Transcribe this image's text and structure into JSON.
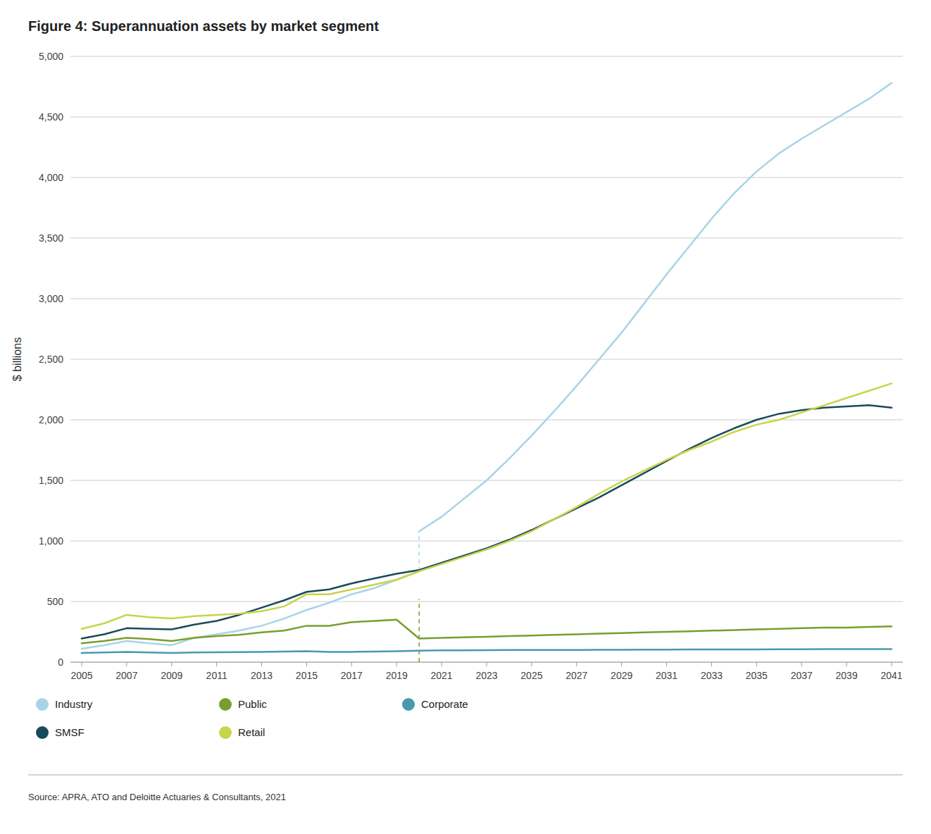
{
  "chart_data": {
    "type": "line",
    "title": "Figure 4: Superannuation assets by market segment",
    "y_label": "$ billions",
    "source": "Source: APRA, ATO and Deloitte Actuaries & Consultants, 2021",
    "xlim": [
      2004.5,
      2041.5
    ],
    "xticks": [
      2005,
      2007,
      2009,
      2011,
      2013,
      2015,
      2017,
      2019,
      2021,
      2023,
      2025,
      2027,
      2029,
      2031,
      2033,
      2035,
      2037,
      2039,
      2041
    ],
    "ylim": [
      0,
      5000
    ],
    "yticks": [
      0,
      500,
      {
        "value": 1000,
        "label": "1,000"
      },
      {
        "value": 1500,
        "label": "1,500"
      },
      {
        "value": 2000,
        "label": "2,000"
      },
      {
        "value": 2500,
        "label": "2,500"
      },
      {
        "value": 3000,
        "label": "3,000"
      },
      {
        "value": 3500,
        "label": "3,500"
      },
      {
        "value": 4000,
        "label": "4,000"
      },
      {
        "value": 4500,
        "label": "4,500"
      },
      {
        "value": 5000,
        "label": "5,000"
      }
    ],
    "grid": "y",
    "legend": "bottom",
    "legend_order": [
      0,
      3,
      4,
      1,
      2
    ],
    "series": [
      {
        "name": "Industry",
        "color": "#a8d4e6",
        "segments": [
          {
            "x": [
              2005,
              2006,
              2007,
              2008,
              2009,
              2010,
              2011,
              2012,
              2013,
              2014,
              2015,
              2016,
              2017,
              2018,
              2019,
              2020
            ],
            "values": [
              110,
              140,
              175,
              155,
              140,
              200,
              230,
              260,
              300,
              360,
              430,
              490,
              560,
              610,
              680,
              750
            ]
          },
          {
            "x": [
              2020,
              2021,
              2022,
              2023,
              2024,
              2025,
              2026,
              2027,
              2028,
              2029,
              2030,
              2031,
              2032,
              2033,
              2034,
              2035,
              2036,
              2037,
              2038,
              2039,
              2040,
              2041
            ],
            "values": [
              1080,
              1200,
              1350,
              1500,
              1680,
              1870,
              2070,
              2280,
              2500,
              2720,
              2960,
              3200,
              3430,
              3660,
              3870,
              4050,
              4200,
              4320,
              4430,
              4540,
              4650,
              4780
            ]
          }
        ]
      },
      {
        "name": "SMSF",
        "color": "#1a4a5a",
        "segments": [
          {
            "x": [
              2005,
              2006,
              2007,
              2008,
              2009,
              2010,
              2011,
              2012,
              2013,
              2014,
              2015,
              2016,
              2017,
              2018,
              2019,
              2020
            ],
            "values": [
              195,
              230,
              280,
              275,
              270,
              310,
              340,
              390,
              450,
              510,
              580,
              600,
              650,
              690,
              730,
              760
            ]
          },
          {
            "x": [
              2020,
              2021,
              2022,
              2023,
              2024,
              2025,
              2026,
              2027,
              2028,
              2029,
              2030,
              2031,
              2032,
              2033,
              2034,
              2035,
              2036,
              2037,
              2038,
              2039,
              2040,
              2041
            ],
            "values": [
              760,
              820,
              880,
              940,
              1010,
              1090,
              1180,
              1270,
              1360,
              1460,
              1560,
              1660,
              1760,
              1850,
              1930,
              2000,
              2050,
              2080,
              2100,
              2110,
              2120,
              2100
            ]
          }
        ]
      },
      {
        "name": "Retail",
        "color": "#c8d44a",
        "segments": [
          {
            "x": [
              2005,
              2006,
              2007,
              2008,
              2009,
              2010,
              2011,
              2012,
              2013,
              2014,
              2015,
              2016,
              2017,
              2018,
              2019,
              2020
            ],
            "values": [
              275,
              320,
              390,
              370,
              360,
              380,
              390,
              400,
              420,
              460,
              560,
              560,
              600,
              640,
              680,
              750
            ]
          },
          {
            "x": [
              2020,
              2021,
              2022,
              2023,
              2024,
              2025,
              2026,
              2027,
              2028,
              2029,
              2030,
              2031,
              2032,
              2033,
              2034,
              2035,
              2036,
              2037,
              2038,
              2039,
              2040,
              2041
            ],
            "values": [
              750,
              810,
              870,
              930,
              1000,
              1080,
              1180,
              1280,
              1390,
              1490,
              1580,
              1670,
              1750,
              1820,
              1900,
              1960,
              2000,
              2060,
              2120,
              2180,
              2240,
              2300
            ]
          }
        ]
      },
      {
        "name": "Public",
        "color": "#7a9e2e",
        "segments": [
          {
            "x": [
              2005,
              2006,
              2007,
              2008,
              2009,
              2010,
              2011,
              2012,
              2013,
              2014,
              2015,
              2016,
              2017,
              2018,
              2019,
              2020
            ],
            "values": [
              155,
              175,
              200,
              190,
              175,
              200,
              215,
              225,
              245,
              260,
              300,
              300,
              330,
              340,
              350,
              195
            ]
          },
          {
            "x": [
              2020,
              2021,
              2022,
              2023,
              2024,
              2025,
              2026,
              2027,
              2028,
              2029,
              2030,
              2031,
              2032,
              2033,
              2034,
              2035,
              2036,
              2037,
              2038,
              2039,
              2040,
              2041
            ],
            "values": [
              195,
              200,
              205,
              210,
              215,
              220,
              225,
              230,
              235,
              240,
              245,
              250,
              255,
              260,
              265,
              270,
              275,
              280,
              285,
              285,
              290,
              295
            ]
          }
        ]
      },
      {
        "name": "Corporate",
        "color": "#4899b0",
        "segments": [
          {
            "x": [
              2005,
              2006,
              2007,
              2008,
              2009,
              2010,
              2011,
              2012,
              2013,
              2014,
              2015,
              2016,
              2017,
              2018,
              2019,
              2020
            ],
            "values": [
              75,
              80,
              85,
              80,
              75,
              80,
              82,
              83,
              85,
              87,
              90,
              85,
              85,
              87,
              90,
              95
            ]
          },
          {
            "x": [
              2020,
              2021,
              2022,
              2023,
              2024,
              2025,
              2026,
              2027,
              2028,
              2029,
              2030,
              2031,
              2032,
              2033,
              2034,
              2035,
              2036,
              2037,
              2038,
              2039,
              2040,
              2041
            ],
            "values": [
              95,
              97,
              98,
              99,
              100,
              100,
              101,
              101,
              102,
              102,
              103,
              103,
              104,
              104,
              105,
              105,
              106,
              106,
              107,
              107,
              108,
              108
            ]
          }
        ]
      }
    ],
    "split_lines": [
      {
        "x": 2020,
        "values": [
          0,
          520
        ],
        "color": "#7a9e2e",
        "line_style": "dashed"
      },
      {
        "x": 2020,
        "values": [
          750,
          1080
        ],
        "color": "#a8d4e6",
        "line_style": "dashed"
      }
    ]
  }
}
